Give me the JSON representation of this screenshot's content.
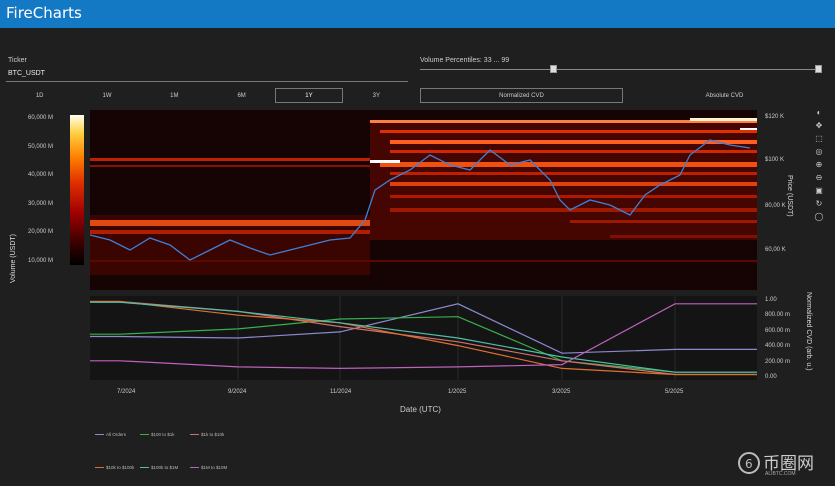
{
  "app": {
    "title": "FireCharts"
  },
  "ticker": {
    "label": "Ticker",
    "value": "BTC_USDT"
  },
  "percentiles": {
    "label": "Volume Percentiles: 33 ... 99",
    "low": 33,
    "high": 99
  },
  "timeframes": {
    "items": [
      "1D",
      "1W",
      "1M",
      "6M",
      "1Y",
      "3Y"
    ],
    "selected": "1Y"
  },
  "cvd_modes": {
    "items": [
      "Normalized CVD",
      "Absolute CVD"
    ],
    "selected": "Normalized CVD"
  },
  "heatmap_axis": {
    "ylabel": "Volume (USDT)",
    "ticks": [
      "60,000 M",
      "50,000 M",
      "40,000 M",
      "30,000 M",
      "20,000 M",
      "10,000 M"
    ],
    "price_label": "Price (USDT)",
    "price_ticks": [
      "$120 K",
      "$100 K",
      "80,00 K",
      "60,00 K"
    ]
  },
  "cvd_axis": {
    "label": "Normalized CVD (arb. u.)",
    "ticks": [
      "1.00",
      "800.00 m",
      "600.00 m",
      "400.00 m",
      "200.00 m",
      "0.00"
    ]
  },
  "x_axis": {
    "label": "Date (UTC)",
    "ticks": [
      "7/2024",
      "9/2024",
      "11/2024",
      "1/2025",
      "3/2025",
      "5/2025"
    ]
  },
  "legend": [
    {
      "label": "All Orders",
      "color": "#8a8acf"
    },
    {
      "label": "$100 to $1k",
      "color": "#38b04a"
    },
    {
      "label": "$1k to $10k",
      "color": "#d07070"
    },
    {
      "label": "$10k to $100k",
      "color": "#e07030"
    },
    {
      "label": "$100k to $1M",
      "color": "#4fbfa8"
    },
    {
      "label": "$1M to $10M",
      "color": "#c060c0"
    }
  ],
  "watermark": {
    "text": "币圈网",
    "sub": "ALIBTC.COM"
  },
  "chart_data": {
    "type": "line",
    "x": [
      "7/2024",
      "9/2024",
      "11/2024",
      "1/2025",
      "3/2025",
      "5/2025"
    ],
    "y_axis": "Normalized CVD (arb. u.)",
    "ylim": [
      0,
      1
    ],
    "series": [
      {
        "name": "All Orders",
        "color": "#8a8acf",
        "values": [
          0.52,
          0.5,
          0.58,
          0.95,
          0.3,
          0.35
        ]
      },
      {
        "name": "$100 to $1k",
        "color": "#38b04a",
        "values": [
          0.55,
          0.62,
          0.75,
          0.78,
          0.2,
          0.05
        ]
      },
      {
        "name": "$1k to $10k",
        "color": "#d07070",
        "values": [
          0.98,
          0.85,
          0.65,
          0.45,
          0.2,
          0.02
        ]
      },
      {
        "name": "$10k to $100k",
        "color": "#e07030",
        "values": [
          0.98,
          0.8,
          0.7,
          0.4,
          0.1,
          0.02
        ]
      },
      {
        "name": "$100k to $1M",
        "color": "#4fbfa8",
        "values": [
          0.97,
          0.85,
          0.7,
          0.5,
          0.25,
          0.05
        ]
      },
      {
        "name": "$1M to $10M",
        "color": "#c060c0",
        "values": [
          0.2,
          0.12,
          0.1,
          0.12,
          0.15,
          0.95
        ]
      }
    ]
  }
}
